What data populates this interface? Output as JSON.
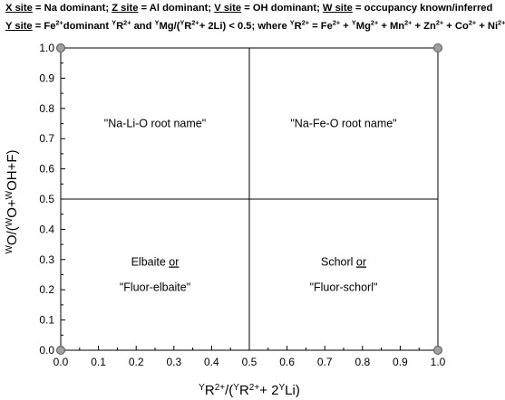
{
  "header": {
    "line1": {
      "x_site": "X site",
      "x_text": " = Na dominant; ",
      "z_site": "Z site",
      "z_text": " = Al dominant; ",
      "v_site": "V site",
      "v_text": " = OH dominant; ",
      "w_site": "W site",
      "w_text": " = occupancy known/inferred"
    },
    "line2": {
      "y_site": "Y site",
      "t1": " = Fe",
      "s1": "2+",
      "t2": "dominant ",
      "s2": "Y",
      "t3": "R",
      "s3": "2+",
      "t4": " and ",
      "s4": "Y",
      "t5": "Mg/(",
      "s5": "Y",
      "t6": "R",
      "s6": "2+",
      "t7": "+ 2Li) < 0.5; where ",
      "s7": "Y",
      "t8": "R",
      "s8": "2+",
      "t9": " = Fe",
      "s9": "2+",
      "t10": " + ",
      "s10": "Y",
      "t11": "Mg",
      "s11": "2+",
      "t12": " + Mn",
      "s12": "2+",
      "t13": " + Zn",
      "s13": "2+",
      "t14": " + Co",
      "s14": "2+",
      "t15": " + Ni",
      "s15": "2+"
    }
  },
  "chart_data": {
    "type": "scatter",
    "xlim": [
      0.0,
      1.0
    ],
    "ylim": [
      0.0,
      1.0
    ],
    "x_ticks": [
      "0.0",
      "0.1",
      "0.2",
      "0.3",
      "0.4",
      "0.5",
      "0.6",
      "0.7",
      "0.8",
      "0.9",
      "1.0"
    ],
    "y_ticks": [
      "0.0",
      "0.1",
      "0.2",
      "0.3",
      "0.4",
      "0.5",
      "0.6",
      "0.7",
      "0.8",
      "0.9",
      "1.0"
    ],
    "xlabel": {
      "p1": "Y",
      "p2": "R",
      "p3": "2+",
      "p4": "/(",
      "p5": "Y",
      "p6": "R",
      "p7": "2+",
      "p8": "+ 2",
      "p9": "Y",
      "p10": "Li)"
    },
    "ylabel": {
      "p1": "W",
      "p2": "O/(",
      "p3": "W",
      "p4": "O+",
      "p5": "W",
      "p6": "OH+F)"
    },
    "divider_lines": [
      {
        "axis": "x",
        "value": 0.5
      },
      {
        "axis": "y",
        "value": 0.5
      }
    ],
    "corner_points": [
      {
        "x": 0.0,
        "y": 1.0
      },
      {
        "x": 1.0,
        "y": 1.0
      },
      {
        "x": 0.0,
        "y": 0.0
      },
      {
        "x": 1.0,
        "y": 0.0
      }
    ],
    "point_color": "#a0a0a0",
    "field_labels": [
      {
        "lines": [
          "\"Na-Li-O root name\""
        ],
        "x": 0.25,
        "y": 0.75
      },
      {
        "lines": [
          "\"Na-Fe-O root name\""
        ],
        "x": 0.75,
        "y": 0.75
      },
      {
        "lines": [
          "Elbaite or",
          "\"Fluor-elbaite\""
        ],
        "underline_word": "or",
        "x": 0.25,
        "y": 0.25
      },
      {
        "lines": [
          "Schorl or",
          "\"Fluor-schorl\""
        ],
        "underline_word": "or",
        "x": 0.75,
        "y": 0.25
      }
    ]
  }
}
